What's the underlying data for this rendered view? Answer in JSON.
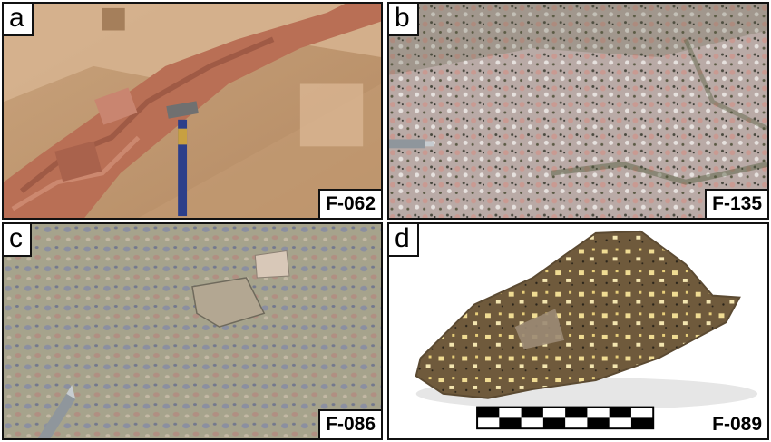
{
  "panels": [
    {
      "letter": "a",
      "code": "F-062"
    },
    {
      "letter": "b",
      "code": "F-135"
    },
    {
      "letter": "c",
      "code": "F-086"
    },
    {
      "letter": "d",
      "code": "F-089"
    }
  ]
}
